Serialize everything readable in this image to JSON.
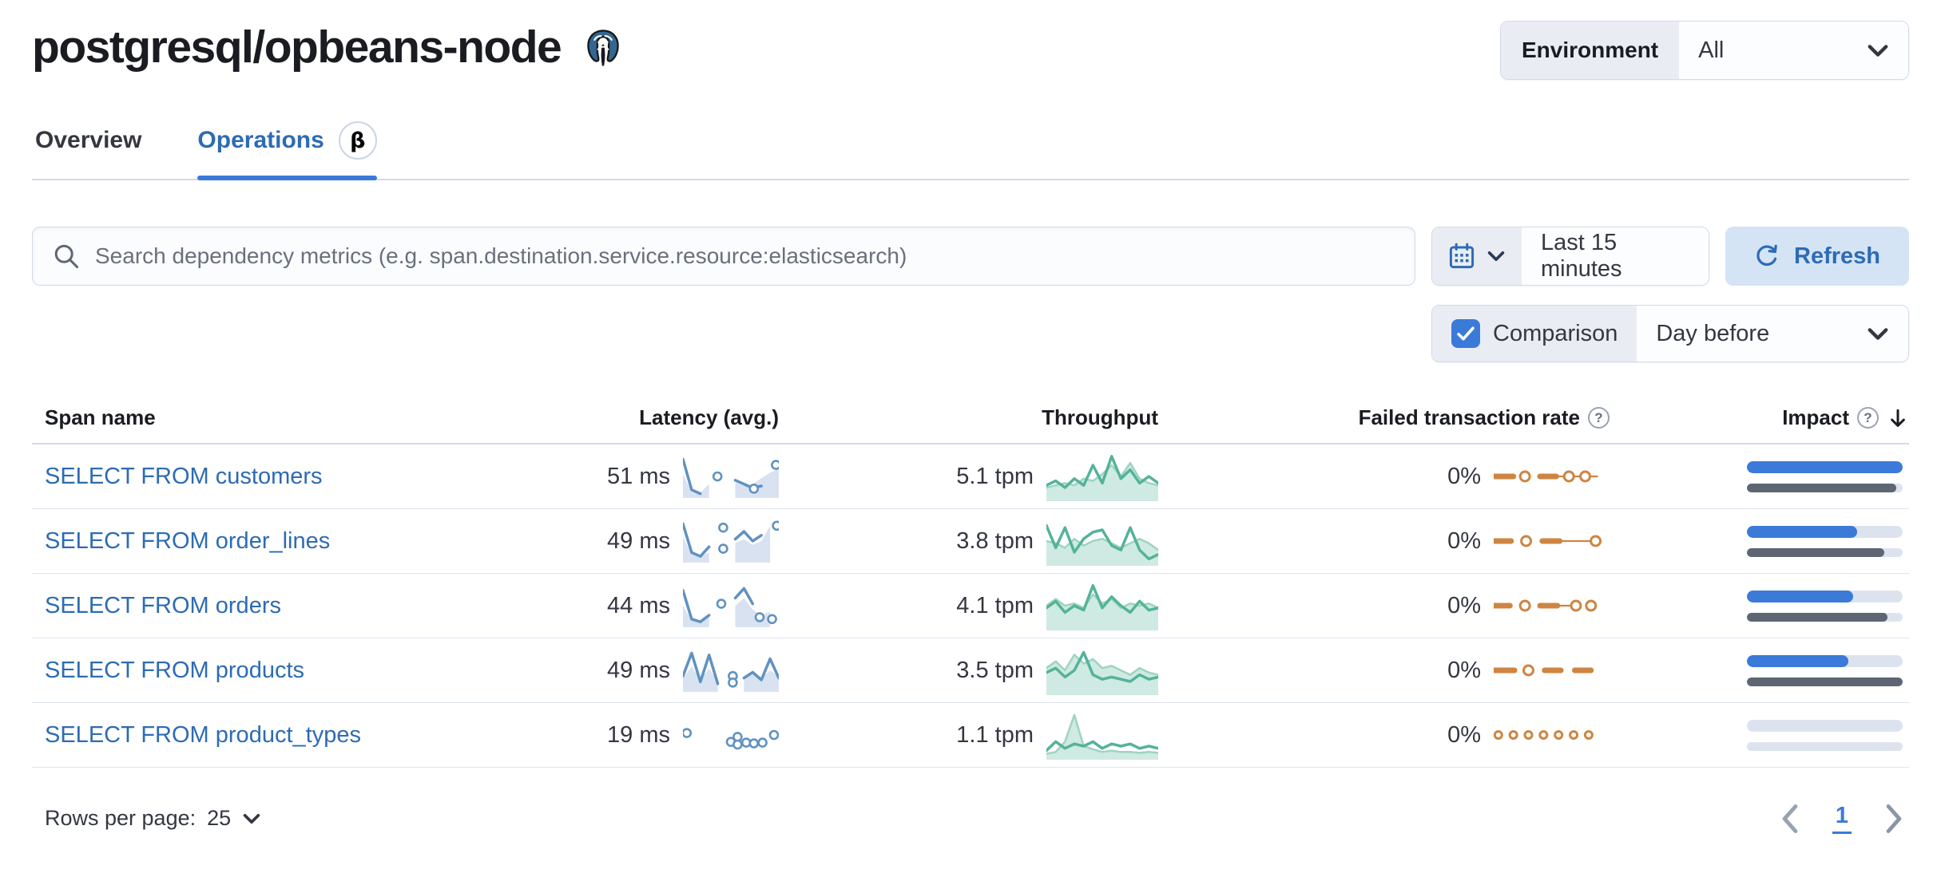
{
  "page": {
    "title": "postgresql/opbeans-node"
  },
  "environment": {
    "label": "Environment",
    "value": "All"
  },
  "tabs": [
    {
      "label": "Overview",
      "active": false
    },
    {
      "label": "Operations",
      "active": true,
      "beta": "β"
    }
  ],
  "toolbar": {
    "search_placeholder": "Search dependency metrics (e.g. span.destination.service.resource:elasticsearch)",
    "time_range": "Last 15 minutes",
    "refresh_label": "Refresh"
  },
  "comparison": {
    "checked": true,
    "label": "Comparison",
    "value": "Day before"
  },
  "colors": {
    "accent_blue": "#3b7ad9",
    "link_blue": "#2d6bb4",
    "vis_blue": "#6092c0",
    "vis_green": "#54b399",
    "vis_orange": "#ce8541",
    "impact_prev_gray": "#5e6673"
  },
  "table": {
    "columns": [
      "Span name",
      "Latency (avg.)",
      "Throughput",
      "Failed transaction rate",
      "Impact"
    ],
    "rows": [
      {
        "span_name": "SELECT FROM customers",
        "latency": "51 ms",
        "throughput": "5.1 tpm",
        "failed_rate": "0%",
        "impact": {
          "current": 1.0,
          "previous": 0.96
        },
        "latency_spark": {
          "mode": "line",
          "dot_color": "#6092c0",
          "series": [
            {
              "values": [
                0.55,
                0.1,
                0.08,
                0.3,
                null,
                null,
                0.35,
                0.25,
                0.3,
                0.45,
                0.6,
                0.7
              ],
              "fill": "#d9e2f1"
            },
            {
              "values": [
                0.95,
                0.15,
                0.05,
                null,
                null,
                null,
                0.4,
                0.3,
                0.2,
                0.25,
                null,
                null
              ],
              "stroke": "#6092c0"
            }
          ],
          "dots": [
            [
              0.36,
              0.5
            ],
            [
              0.74,
              0.18
            ],
            [
              0.97,
              0.8
            ]
          ]
        },
        "throughput_spark": {
          "mode": "line",
          "series": [
            {
              "values": [
                0.25,
                0.3,
                0.35,
                0.3,
                0.45,
                0.4,
                0.55,
                0.75,
                0.5,
                0.8,
                0.45,
                0.35,
                0.3
              ],
              "fill": "rgba(84,179,153,0.28)",
              "stroke": "#9ed4bf",
              "width": 2.5
            },
            {
              "values": [
                0.3,
                0.4,
                0.25,
                0.45,
                0.3,
                0.75,
                0.35,
                0.95,
                0.45,
                0.65,
                0.35,
                0.5,
                0.35
              ],
              "stroke": "#54b399"
            }
          ]
        },
        "failed_spark": {
          "mode": "flat",
          "color": "#ce8541",
          "thick": [
            [
              0,
              0.17
            ],
            [
              0.4,
              0.54
            ]
          ],
          "thin": [
            [
              0.54,
              0.9
            ]
          ],
          "rings": [
            0.27,
            0.65,
            0.79
          ]
        }
      },
      {
        "span_name": "SELECT FROM order_lines",
        "latency": "49 ms",
        "throughput": "3.8 tpm",
        "failed_rate": "0%",
        "impact": {
          "current": 0.71,
          "previous": 0.88
        },
        "latency_spark": {
          "mode": "line",
          "dot_color": "#6092c0",
          "series": [
            {
              "values": [
                0.6,
                0.15,
                0.1,
                0.2,
                null,
                null,
                0.45,
                0.55,
                0.4,
                0.5,
                0.9,
                null
              ],
              "fill": "#d9e2f1"
            },
            {
              "values": [
                0.95,
                0.2,
                0.1,
                0.35,
                null,
                null,
                0.55,
                0.75,
                0.5,
                0.65,
                null,
                null
              ],
              "stroke": "#6092c0"
            }
          ],
          "dots": [
            [
              0.42,
              0.85
            ],
            [
              0.42,
              0.3
            ],
            [
              0.98,
              0.9
            ]
          ]
        },
        "throughput_spark": {
          "mode": "line",
          "series": [
            {
              "values": [
                0.5,
                0.45,
                0.35,
                0.55,
                0.4,
                0.5,
                0.55,
                0.45,
                0.35,
                0.45,
                0.55,
                0.45,
                0.3
              ],
              "fill": "rgba(84,179,153,0.28)",
              "stroke": "#9ed4bf",
              "width": 2.5
            },
            {
              "values": [
                0.85,
                0.35,
                0.8,
                0.25,
                0.55,
                0.7,
                0.75,
                0.4,
                0.3,
                0.8,
                0.3,
                0.1,
                0.2
              ],
              "stroke": "#54b399"
            }
          ]
        },
        "failed_spark": {
          "mode": "flat",
          "color": "#ce8541",
          "thick": [
            [
              0,
              0.15
            ],
            [
              0.42,
              0.57
            ]
          ],
          "thin": [
            [
              0.57,
              0.86
            ]
          ],
          "rings": [
            0.28,
            0.88
          ]
        }
      },
      {
        "span_name": "SELECT FROM orders",
        "latency": "44 ms",
        "throughput": "4.1 tpm",
        "failed_rate": "0%",
        "impact": {
          "current": 0.68,
          "previous": 0.9
        },
        "latency_spark": {
          "mode": "line",
          "dot_color": "#6092c0",
          "series": [
            {
              "values": [
                0.5,
                0.12,
                0.1,
                0.3,
                null,
                null,
                0.5,
                0.7,
                0.4,
                0.25,
                0.35,
                null
              ],
              "fill": "#d9e2f1"
            },
            {
              "values": [
                0.9,
                0.15,
                0.08,
                0.25,
                null,
                null,
                0.7,
                0.95,
                0.55,
                null,
                null,
                null
              ],
              "stroke": "#6092c0"
            }
          ],
          "dots": [
            [
              0.4,
              0.55
            ],
            [
              0.8,
              0.2
            ],
            [
              0.93,
              0.15
            ]
          ]
        },
        "throughput_spark": {
          "mode": "line",
          "series": [
            {
              "values": [
                0.5,
                0.65,
                0.5,
                0.55,
                0.45,
                0.75,
                0.55,
                0.65,
                0.45,
                0.55,
                0.5,
                0.55,
                0.45
              ],
              "fill": "rgba(84,179,153,0.28)",
              "stroke": "#9ed4bf",
              "width": 2.5
            },
            {
              "values": [
                0.45,
                0.6,
                0.35,
                0.5,
                0.4,
                0.95,
                0.45,
                0.7,
                0.5,
                0.35,
                0.6,
                0.4,
                0.45
              ],
              "stroke": "#54b399"
            }
          ]
        },
        "failed_spark": {
          "mode": "flat",
          "color": "#ce8541",
          "thick": [
            [
              0,
              0.14
            ],
            [
              0.4,
              0.55
            ]
          ],
          "thin": [
            [
              0.55,
              0.68
            ]
          ],
          "rings": [
            0.27,
            0.71,
            0.84
          ]
        }
      },
      {
        "span_name": "SELECT FROM products",
        "latency": "49 ms",
        "throughput": "3.5 tpm",
        "failed_rate": "0%",
        "impact": {
          "current": 0.65,
          "previous": 1.0
        },
        "latency_spark": {
          "mode": "line",
          "dot_color": "#6092c0",
          "series": [
            {
              "values": [
                0.3,
                0.6,
                0.25,
                0.55,
                0.2,
                null,
                null,
                0.35,
                0.4,
                0.3,
                0.5,
                0.35
              ],
              "fill": "#d9e2f1"
            },
            {
              "values": [
                0.35,
                0.95,
                0.2,
                0.9,
                0.15,
                null,
                null,
                0.3,
                0.45,
                0.25,
                0.8,
                0.3
              ],
              "stroke": "#6092c0"
            }
          ],
          "dots": [
            [
              0.52,
              0.35
            ],
            [
              0.52,
              0.18
            ]
          ]
        },
        "throughput_spark": {
          "mode": "line",
          "series": [
            {
              "values": [
                0.55,
                0.7,
                0.5,
                0.85,
                0.65,
                0.75,
                0.55,
                0.6,
                0.5,
                0.4,
                0.55,
                0.45,
                0.4
              ],
              "fill": "rgba(84,179,153,0.28)",
              "stroke": "#9ed4bf",
              "width": 2.5
            },
            {
              "values": [
                0.45,
                0.55,
                0.35,
                0.5,
                0.9,
                0.4,
                0.3,
                0.35,
                0.3,
                0.25,
                0.4,
                0.3,
                0.35
              ],
              "stroke": "#54b399"
            }
          ]
        },
        "failed_spark": {
          "mode": "flat",
          "color": "#ce8541",
          "thick": [
            [
              0,
              0.18
            ],
            [
              0.44,
              0.58
            ],
            [
              0.7,
              0.84
            ]
          ],
          "thin": [],
          "rings": [
            0.3
          ]
        }
      },
      {
        "span_name": "SELECT FROM product_types",
        "latency": "19 ms",
        "throughput": "1.1 tpm",
        "failed_rate": "0%",
        "impact": {
          "current": 0,
          "previous": 0
        },
        "latency_spark": {
          "mode": "line",
          "dot_color": "#6092c0",
          "series": [],
          "dots": [
            [
              0.04,
              0.55
            ],
            [
              0.5,
              0.32
            ],
            [
              0.57,
              0.45
            ],
            [
              0.57,
              0.25
            ],
            [
              0.66,
              0.3
            ],
            [
              0.74,
              0.28
            ],
            [
              0.83,
              0.3
            ],
            [
              0.95,
              0.5
            ]
          ]
        },
        "throughput_spark": {
          "mode": "line",
          "series": [
            {
              "values": [
                0.08,
                0.12,
                0.35,
                0.95,
                0.25,
                0.18,
                0.12,
                0.15,
                0.12,
                0.12,
                0.1,
                0.12,
                0.1
              ],
              "fill": "rgba(84,179,153,0.28)",
              "stroke": "#9ed4bf",
              "width": 2.5
            },
            {
              "values": [
                0.15,
                0.35,
                0.2,
                0.3,
                0.25,
                0.35,
                0.2,
                0.3,
                0.25,
                0.3,
                0.2,
                0.25,
                0.2
              ],
              "stroke": "#54b399"
            }
          ]
        },
        "failed_spark": {
          "mode": "flat",
          "color": "#ce8541",
          "ring_r": 4.5,
          "thick": [],
          "thin": [],
          "rings": [
            0.04,
            0.17,
            0.3,
            0.43,
            0.56,
            0.69,
            0.82
          ]
        }
      }
    ]
  },
  "footer": {
    "rows_per_page_label": "Rows per page:",
    "rows_per_page_value": "25",
    "page": "1"
  }
}
